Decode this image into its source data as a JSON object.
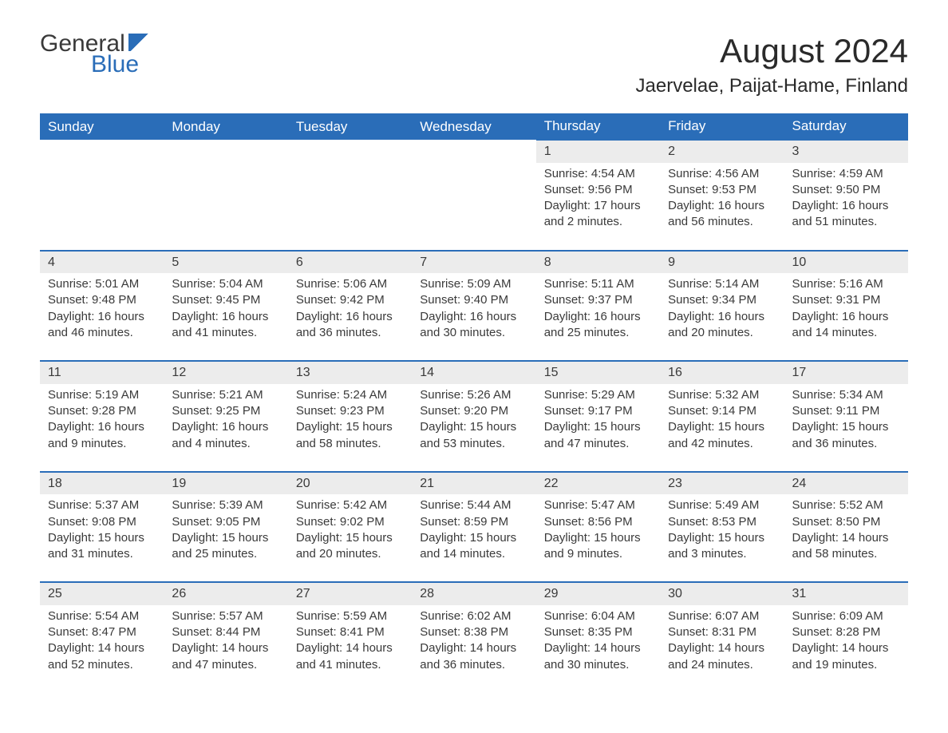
{
  "logo": {
    "text1": "General",
    "text2": "Blue"
  },
  "title": "August 2024",
  "subtitle": "Jaervelae, Paijat-Hame, Finland",
  "columns": [
    "Sunday",
    "Monday",
    "Tuesday",
    "Wednesday",
    "Thursday",
    "Friday",
    "Saturday"
  ],
  "style": {
    "header_bg": "#2a6db8",
    "header_fg": "#ffffff",
    "daynum_bg": "#ececec",
    "daynum_border_top": "#2a6db8",
    "body_bg": "#ffffff",
    "text_color": "#3a3a3a",
    "title_fontsize": 42,
    "subtitle_fontsize": 24,
    "th_fontsize": 17,
    "cell_fontsize": 15,
    "logo_accent": "#2a6db8"
  },
  "weeks": [
    [
      null,
      null,
      null,
      null,
      {
        "n": "1",
        "sunrise": "Sunrise: 4:54 AM",
        "sunset": "Sunset: 9:56 PM",
        "day1": "Daylight: 17 hours",
        "day2": "and 2 minutes."
      },
      {
        "n": "2",
        "sunrise": "Sunrise: 4:56 AM",
        "sunset": "Sunset: 9:53 PM",
        "day1": "Daylight: 16 hours",
        "day2": "and 56 minutes."
      },
      {
        "n": "3",
        "sunrise": "Sunrise: 4:59 AM",
        "sunset": "Sunset: 9:50 PM",
        "day1": "Daylight: 16 hours",
        "day2": "and 51 minutes."
      }
    ],
    [
      {
        "n": "4",
        "sunrise": "Sunrise: 5:01 AM",
        "sunset": "Sunset: 9:48 PM",
        "day1": "Daylight: 16 hours",
        "day2": "and 46 minutes."
      },
      {
        "n": "5",
        "sunrise": "Sunrise: 5:04 AM",
        "sunset": "Sunset: 9:45 PM",
        "day1": "Daylight: 16 hours",
        "day2": "and 41 minutes."
      },
      {
        "n": "6",
        "sunrise": "Sunrise: 5:06 AM",
        "sunset": "Sunset: 9:42 PM",
        "day1": "Daylight: 16 hours",
        "day2": "and 36 minutes."
      },
      {
        "n": "7",
        "sunrise": "Sunrise: 5:09 AM",
        "sunset": "Sunset: 9:40 PM",
        "day1": "Daylight: 16 hours",
        "day2": "and 30 minutes."
      },
      {
        "n": "8",
        "sunrise": "Sunrise: 5:11 AM",
        "sunset": "Sunset: 9:37 PM",
        "day1": "Daylight: 16 hours",
        "day2": "and 25 minutes."
      },
      {
        "n": "9",
        "sunrise": "Sunrise: 5:14 AM",
        "sunset": "Sunset: 9:34 PM",
        "day1": "Daylight: 16 hours",
        "day2": "and 20 minutes."
      },
      {
        "n": "10",
        "sunrise": "Sunrise: 5:16 AM",
        "sunset": "Sunset: 9:31 PM",
        "day1": "Daylight: 16 hours",
        "day2": "and 14 minutes."
      }
    ],
    [
      {
        "n": "11",
        "sunrise": "Sunrise: 5:19 AM",
        "sunset": "Sunset: 9:28 PM",
        "day1": "Daylight: 16 hours",
        "day2": "and 9 minutes."
      },
      {
        "n": "12",
        "sunrise": "Sunrise: 5:21 AM",
        "sunset": "Sunset: 9:25 PM",
        "day1": "Daylight: 16 hours",
        "day2": "and 4 minutes."
      },
      {
        "n": "13",
        "sunrise": "Sunrise: 5:24 AM",
        "sunset": "Sunset: 9:23 PM",
        "day1": "Daylight: 15 hours",
        "day2": "and 58 minutes."
      },
      {
        "n": "14",
        "sunrise": "Sunrise: 5:26 AM",
        "sunset": "Sunset: 9:20 PM",
        "day1": "Daylight: 15 hours",
        "day2": "and 53 minutes."
      },
      {
        "n": "15",
        "sunrise": "Sunrise: 5:29 AM",
        "sunset": "Sunset: 9:17 PM",
        "day1": "Daylight: 15 hours",
        "day2": "and 47 minutes."
      },
      {
        "n": "16",
        "sunrise": "Sunrise: 5:32 AM",
        "sunset": "Sunset: 9:14 PM",
        "day1": "Daylight: 15 hours",
        "day2": "and 42 minutes."
      },
      {
        "n": "17",
        "sunrise": "Sunrise: 5:34 AM",
        "sunset": "Sunset: 9:11 PM",
        "day1": "Daylight: 15 hours",
        "day2": "and 36 minutes."
      }
    ],
    [
      {
        "n": "18",
        "sunrise": "Sunrise: 5:37 AM",
        "sunset": "Sunset: 9:08 PM",
        "day1": "Daylight: 15 hours",
        "day2": "and 31 minutes."
      },
      {
        "n": "19",
        "sunrise": "Sunrise: 5:39 AM",
        "sunset": "Sunset: 9:05 PM",
        "day1": "Daylight: 15 hours",
        "day2": "and 25 minutes."
      },
      {
        "n": "20",
        "sunrise": "Sunrise: 5:42 AM",
        "sunset": "Sunset: 9:02 PM",
        "day1": "Daylight: 15 hours",
        "day2": "and 20 minutes."
      },
      {
        "n": "21",
        "sunrise": "Sunrise: 5:44 AM",
        "sunset": "Sunset: 8:59 PM",
        "day1": "Daylight: 15 hours",
        "day2": "and 14 minutes."
      },
      {
        "n": "22",
        "sunrise": "Sunrise: 5:47 AM",
        "sunset": "Sunset: 8:56 PM",
        "day1": "Daylight: 15 hours",
        "day2": "and 9 minutes."
      },
      {
        "n": "23",
        "sunrise": "Sunrise: 5:49 AM",
        "sunset": "Sunset: 8:53 PM",
        "day1": "Daylight: 15 hours",
        "day2": "and 3 minutes."
      },
      {
        "n": "24",
        "sunrise": "Sunrise: 5:52 AM",
        "sunset": "Sunset: 8:50 PM",
        "day1": "Daylight: 14 hours",
        "day2": "and 58 minutes."
      }
    ],
    [
      {
        "n": "25",
        "sunrise": "Sunrise: 5:54 AM",
        "sunset": "Sunset: 8:47 PM",
        "day1": "Daylight: 14 hours",
        "day2": "and 52 minutes."
      },
      {
        "n": "26",
        "sunrise": "Sunrise: 5:57 AM",
        "sunset": "Sunset: 8:44 PM",
        "day1": "Daylight: 14 hours",
        "day2": "and 47 minutes."
      },
      {
        "n": "27",
        "sunrise": "Sunrise: 5:59 AM",
        "sunset": "Sunset: 8:41 PM",
        "day1": "Daylight: 14 hours",
        "day2": "and 41 minutes."
      },
      {
        "n": "28",
        "sunrise": "Sunrise: 6:02 AM",
        "sunset": "Sunset: 8:38 PM",
        "day1": "Daylight: 14 hours",
        "day2": "and 36 minutes."
      },
      {
        "n": "29",
        "sunrise": "Sunrise: 6:04 AM",
        "sunset": "Sunset: 8:35 PM",
        "day1": "Daylight: 14 hours",
        "day2": "and 30 minutes."
      },
      {
        "n": "30",
        "sunrise": "Sunrise: 6:07 AM",
        "sunset": "Sunset: 8:31 PM",
        "day1": "Daylight: 14 hours",
        "day2": "and 24 minutes."
      },
      {
        "n": "31",
        "sunrise": "Sunrise: 6:09 AM",
        "sunset": "Sunset: 8:28 PM",
        "day1": "Daylight: 14 hours",
        "day2": "and 19 minutes."
      }
    ]
  ]
}
